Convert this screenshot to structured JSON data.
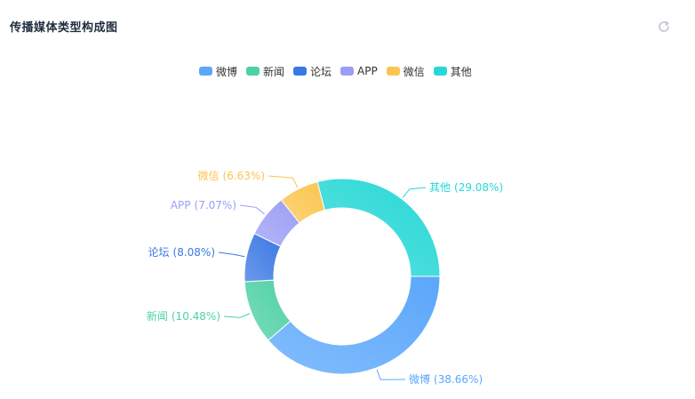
{
  "header": {
    "title": "传播媒体类型构成图",
    "refresh_icon": "refresh-icon"
  },
  "chart_data": {
    "type": "pie",
    "style": "donut",
    "legend_position": "top-center",
    "labels": [
      "微博",
      "新闻",
      "论坛",
      "APP",
      "微信",
      "其他"
    ],
    "values": [
      38.66,
      10.48,
      8.08,
      7.07,
      6.63,
      29.08
    ],
    "value_labels": [
      "(38.66%)",
      "(10.48%)",
      "(8.08%)",
      "(7.07%)",
      "(6.63%)",
      "(29.08%)"
    ],
    "colors": [
      "#5aa7fb",
      "#4fd1a5",
      "#3a78e3",
      "#9b9ef5",
      "#fbc54f",
      "#27d8d6"
    ]
  }
}
